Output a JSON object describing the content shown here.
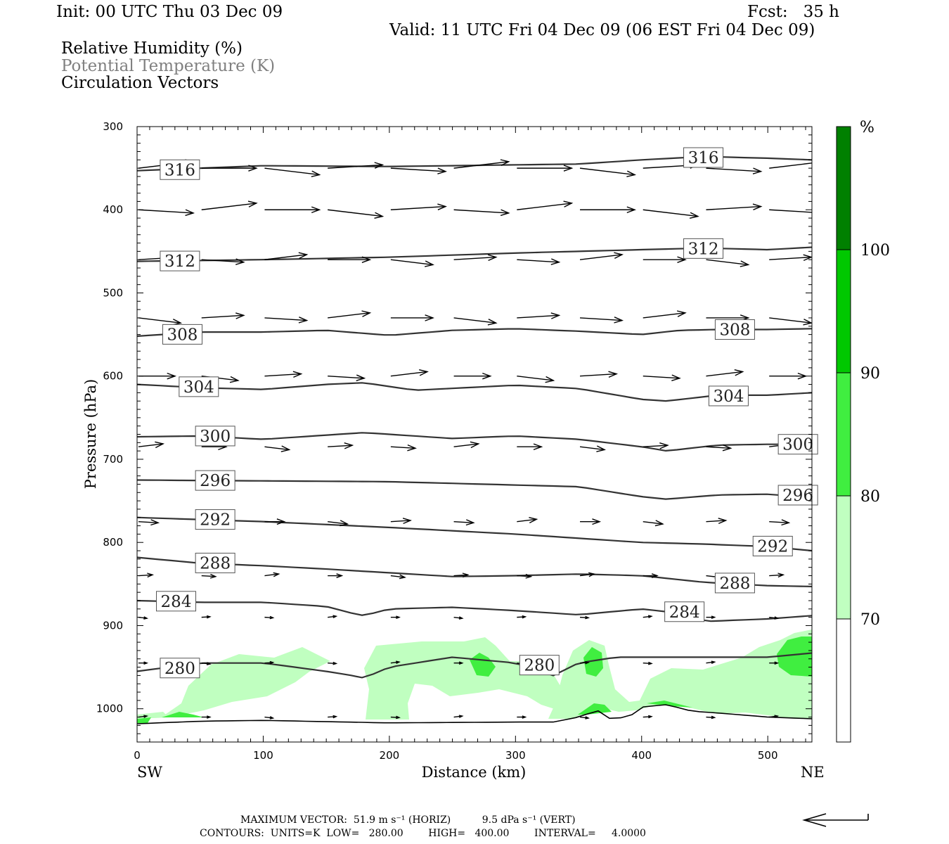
{
  "header": {
    "init": "Init: 00 UTC Thu 03 Dec 09",
    "fcst": "Fcst:   35 h",
    "valid": "Valid: 11 UTC Fri 04 Dec 09 (06 EST Fri 04 Dec 09)",
    "field_1": "Relative Humidity (%)",
    "field_2": "Potential Temperature (K)",
    "field_3": "Circulation Vectors"
  },
  "footer": {
    "max_vector": "MAXIMUM VECTOR:  51.9 m s⁻¹ (HORIZ)          9.5 dPa s⁻¹ (VERT)",
    "contours": "CONTOURS:  UNITS=K  LOW=   280.00        HIGH=   400.00        INTERVAL=     4.0000"
  },
  "colors": {
    "contour": "#333333",
    "rh_70": "#c0ffc0",
    "rh_80": "#40ee40",
    "rh_90": "#00c800",
    "rh_100": "#008000",
    "vector": "#000000"
  },
  "chart_data": {
    "type": "cross-section",
    "xlabel": "Distance (km)",
    "ylabel": "Pressure (hPa)",
    "x_left_label": "SW",
    "x_right_label": "NE",
    "xlim": [
      0,
      535
    ],
    "ylim": [
      1040,
      300
    ],
    "x_ticks": [
      0,
      100,
      200,
      300,
      400,
      500
    ],
    "y_ticks": [
      300,
      400,
      500,
      600,
      700,
      800,
      900,
      1000
    ],
    "colorbar": {
      "unit": "%",
      "levels": [
        70,
        80,
        90,
        100
      ],
      "colors": [
        "#ffffff",
        "#c0ffc0",
        "#40ee40",
        "#00c800",
        "#008000"
      ]
    },
    "theta_contours": [
      {
        "label": "316",
        "x": [
          0,
          100,
          200,
          300,
          350,
          400,
          450,
          500,
          535
        ],
        "p": [
          353,
          347,
          348,
          346,
          345,
          340,
          336,
          338,
          340
        ]
      },
      {
        "label": "312",
        "x": [
          0,
          100,
          200,
          300,
          350,
          400,
          450,
          500,
          535
        ],
        "p": [
          462,
          460,
          457,
          452,
          450,
          448,
          446,
          448,
          445
        ]
      },
      {
        "label": "308",
        "x": [
          0,
          50,
          100,
          150,
          200,
          250,
          300,
          350,
          400,
          430,
          460,
          500,
          535
        ],
        "p": [
          552,
          547,
          547,
          545,
          551,
          545,
          543,
          546,
          550,
          545,
          544,
          544,
          543
        ]
      },
      {
        "label": "304",
        "x": [
          0,
          50,
          100,
          150,
          180,
          220,
          300,
          350,
          400,
          420,
          460,
          500,
          535
        ],
        "p": [
          610,
          614,
          616,
          610,
          608,
          617,
          611,
          615,
          628,
          630,
          623,
          623,
          620
        ]
      },
      {
        "label": "300",
        "x": [
          0,
          50,
          100,
          150,
          180,
          250,
          300,
          350,
          400,
          420,
          460,
          500,
          535
        ],
        "p": [
          673,
          672,
          676,
          671,
          668,
          675,
          672,
          676,
          685,
          690,
          683,
          682,
          682
        ]
      },
      {
        "label": "296",
        "x": [
          0,
          100,
          200,
          300,
          350,
          400,
          420,
          460,
          500,
          535
        ],
        "p": [
          725,
          726,
          727,
          731,
          733,
          745,
          748,
          743,
          742,
          746
        ]
      },
      {
        "label": "292",
        "x": [
          0,
          100,
          200,
          300,
          350,
          400,
          450,
          500,
          535
        ],
        "p": [
          770,
          775,
          782,
          790,
          795,
          800,
          802,
          805,
          810
        ]
      },
      {
        "label": "288",
        "x": [
          0,
          50,
          100,
          150,
          250,
          300,
          350,
          400,
          450,
          500,
          535
        ],
        "p": [
          818,
          825,
          828,
          832,
          841,
          840,
          838,
          840,
          848,
          852,
          853
        ]
      },
      {
        "label": "284",
        "x": [
          0,
          50,
          100,
          150,
          170,
          180,
          200,
          250,
          300,
          350,
          400,
          430,
          450,
          500,
          535
        ],
        "p": [
          870,
          872,
          872,
          877,
          885,
          888,
          880,
          878,
          882,
          887,
          880,
          885,
          895,
          892,
          888
        ]
      },
      {
        "label": "280",
        "x": [
          0,
          50,
          100,
          150,
          170,
          180,
          200,
          250,
          300,
          330,
          350,
          380,
          400,
          450,
          500,
          535
        ],
        "p": [
          955,
          945,
          945,
          955,
          960,
          963,
          950,
          938,
          945,
          960,
          945,
          938,
          938,
          938,
          938,
          933
        ]
      },
      {
        "label": "",
        "x": [
          0,
          50,
          100,
          200,
          300,
          330,
          350,
          365,
          375,
          390,
          400,
          420,
          440,
          460,
          500,
          535
        ],
        "p": [
          1018,
          1015,
          1014,
          1017,
          1016,
          1016,
          1010,
          1002,
          1012,
          1010,
          998,
          995,
          1003,
          1005,
          1010,
          1012
        ]
      }
    ],
    "circulation_vectors": {
      "x_positions": [
        0,
        50,
        100,
        150,
        200,
        250,
        300,
        350,
        400,
        450,
        500,
        535
      ],
      "levels": [
        350,
        400,
        460,
        530,
        600,
        685,
        775,
        840,
        890,
        945,
        1010
      ],
      "u_scale_ms": 51.9
    }
  }
}
